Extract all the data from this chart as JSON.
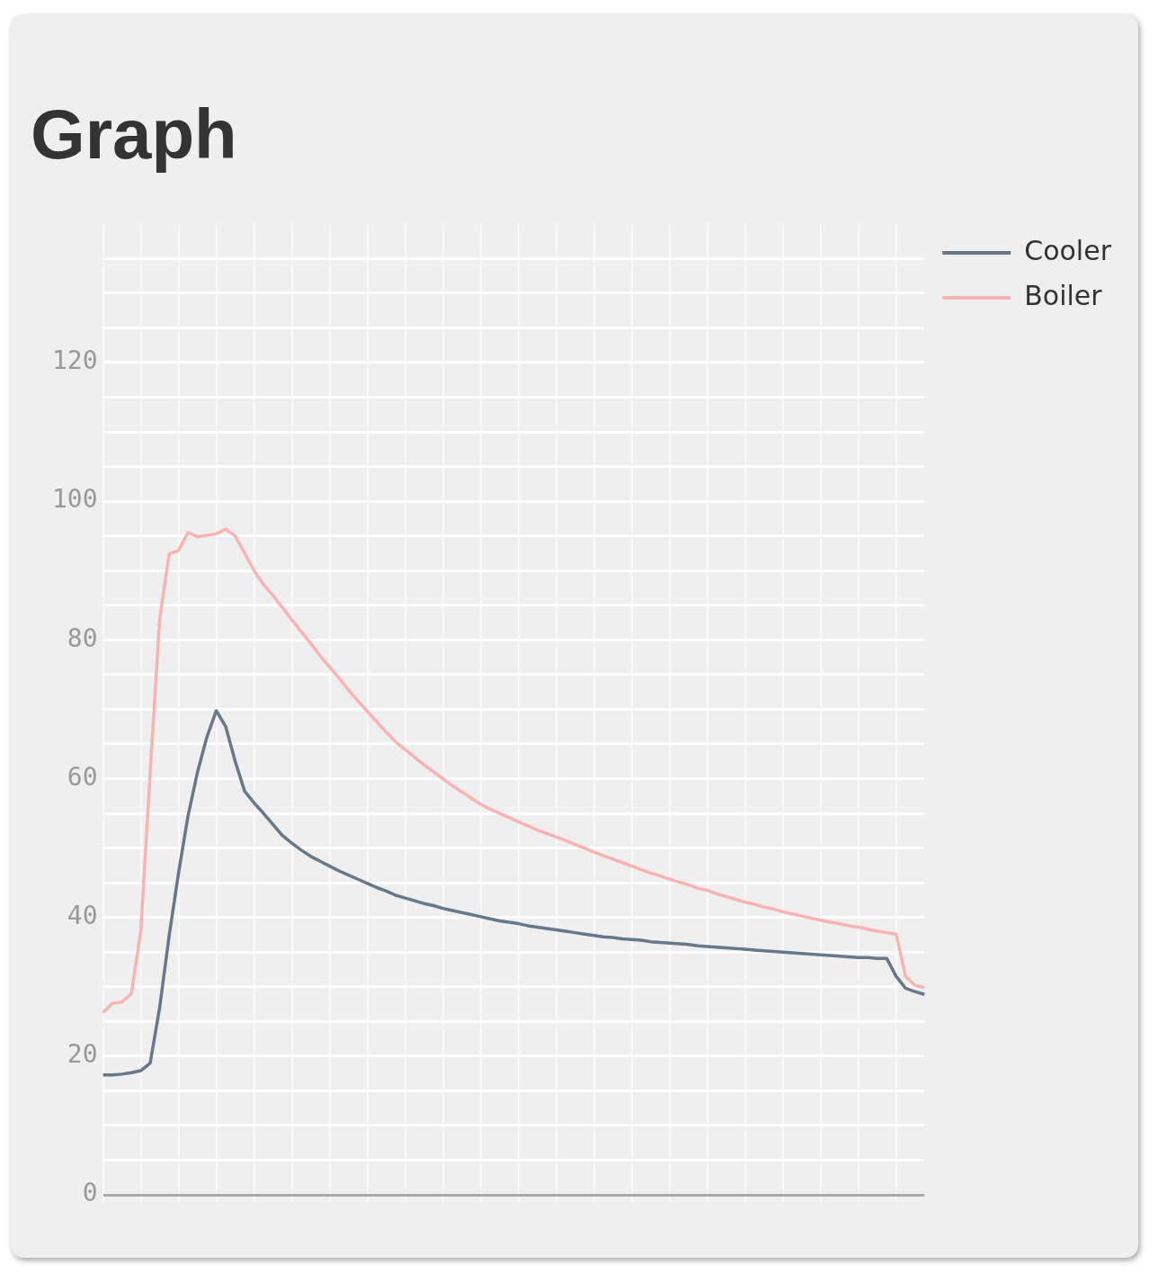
{
  "chart_data": {
    "type": "line",
    "title": "Graph",
    "categories": [
      null,
      null,
      null,
      null,
      null,
      null,
      null,
      null,
      null,
      null,
      null,
      null,
      null,
      null,
      null,
      null,
      null,
      null,
      null,
      null,
      null,
      null,
      null,
      null,
      null,
      null,
      null,
      null,
      null,
      null,
      null,
      null,
      null,
      null,
      null,
      null,
      null,
      null,
      null,
      null,
      null,
      null,
      null,
      null,
      null,
      null,
      null,
      null,
      null,
      null,
      null,
      null,
      null,
      null,
      null,
      null,
      null,
      null,
      null,
      null,
      null,
      null,
      null,
      null,
      null,
      null,
      null,
      null,
      null,
      null,
      null,
      null,
      null,
      null,
      null,
      null,
      null,
      null,
      null,
      null,
      null,
      null,
      null,
      null,
      null,
      null,
      null,
      null
    ],
    "series": [
      {
        "name": "Cooler",
        "color": "#66788a",
        "values": [
          17.3,
          17.3,
          17.4,
          17.6,
          17.9,
          19.0,
          27,
          37.3,
          46.4,
          54.6,
          60.9,
          66,
          69.8,
          67.5,
          62.5,
          58.2,
          56.5,
          55,
          53.4,
          51.8,
          50.7,
          49.7,
          48.8,
          48.1,
          47.4,
          46.7,
          46.1,
          45.5,
          44.9,
          44.3,
          43.8,
          43.2,
          42.8,
          42.4,
          42,
          41.7,
          41.3,
          41,
          40.7,
          40.4,
          40.1,
          39.8,
          39.5,
          39.3,
          39.1,
          38.8,
          38.6,
          38.4,
          38.2,
          38,
          37.8,
          37.6,
          37.4,
          37.2,
          37.1,
          36.9,
          36.8,
          36.7,
          36.5,
          36.4,
          36.3,
          36.2,
          36.1,
          35.9,
          35.8,
          35.7,
          35.6,
          35.5,
          35.4,
          35.3,
          35.2,
          35.1,
          35,
          34.9,
          34.8,
          34.7,
          34.6,
          34.5,
          34.4,
          34.3,
          34.2,
          34.2,
          34.1,
          34.1,
          31.5,
          29.8,
          29.3,
          28.9
        ]
      },
      {
        "name": "Boiler",
        "color": "#f9b3b3",
        "values": [
          26.3,
          27.6,
          27.8,
          29.0,
          38.0,
          61,
          83,
          92.4,
          92.9,
          95.5,
          94.9,
          95.1,
          95.3,
          96.0,
          95,
          92.5,
          90,
          88,
          86.4,
          84.7,
          82.9,
          81.2,
          79.5,
          77.7,
          76.1,
          74.5,
          72.8,
          71.2,
          69.7,
          68.2,
          66.7,
          65.3,
          64.2,
          63.1,
          62,
          61,
          60,
          59,
          58.1,
          57.2,
          56.3,
          55.6,
          55,
          54.4,
          53.8,
          53.2,
          52.6,
          52.1,
          51.6,
          51.1,
          50.5,
          50,
          49.4,
          48.9,
          48.4,
          47.9,
          47.4,
          46.9,
          46.4,
          46,
          45.5,
          45.1,
          44.7,
          44.2,
          43.9,
          43.4,
          43,
          42.6,
          42.2,
          41.9,
          41.5,
          41.2,
          40.8,
          40.5,
          40.2,
          39.9,
          39.6,
          39.3,
          39.1,
          38.8,
          38.6,
          38.3,
          38,
          37.8,
          37.6,
          31.5,
          30.2,
          29.9
        ]
      }
    ],
    "ylim": [
      0,
      140
    ],
    "yticks": [
      0,
      {
        "value": 5,
        "label": null
      },
      {
        "value": 10,
        "label": null
      },
      {
        "value": 15,
        "label": null
      },
      20,
      {
        "value": 25,
        "label": null
      },
      {
        "value": 30,
        "label": null
      },
      {
        "value": 35,
        "label": null
      },
      40,
      {
        "value": 45,
        "label": null
      },
      {
        "value": 50,
        "label": null
      },
      {
        "value": 55,
        "label": null
      },
      60,
      {
        "value": 65,
        "label": null
      },
      {
        "value": 70,
        "label": null
      },
      {
        "value": 75,
        "label": null
      },
      80,
      {
        "value": 85,
        "label": null
      },
      {
        "value": 90,
        "label": null
      },
      {
        "value": 95,
        "label": null
      },
      100,
      {
        "value": 105,
        "label": null
      },
      {
        "value": 110,
        "label": null
      },
      {
        "value": 115,
        "label": null
      },
      120,
      {
        "value": 125,
        "label": null
      },
      {
        "value": 130,
        "label": null
      },
      {
        "value": 135,
        "label": null
      }
    ],
    "grid": true,
    "legend": "top right",
    "tick_labels": "y",
    "marker": "none",
    "line_style": "solid"
  }
}
